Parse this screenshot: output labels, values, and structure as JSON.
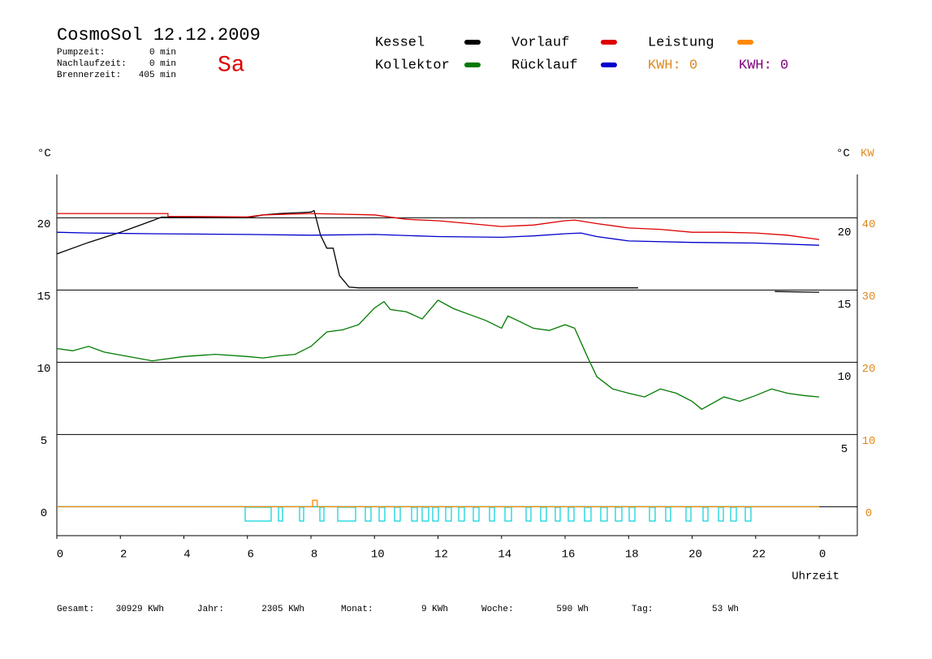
{
  "chart_data": {
    "type": "line",
    "title": "CosmoSol 12.12.2009",
    "day": "Sa",
    "stats": [
      {
        "label": "Pumpzeit:",
        "value": "0 min"
      },
      {
        "label": "Nachlaufzeit:",
        "value": "0 min"
      },
      {
        "label": "Brennerzeit:",
        "value": "405 min"
      }
    ],
    "energy_labels": [
      {
        "text": "KWH: 0",
        "color": "#e08a1e"
      },
      {
        "text": "KWH: 0",
        "color": "#800080"
      }
    ],
    "y_label": "°C",
    "y2_label": [
      {
        "text": "°C",
        "color": "#000000"
      },
      {
        "text": "KW",
        "color": "#e08a1e"
      }
    ],
    "x_label": "Uhrzeit",
    "xlim": [
      0,
      25.2
    ],
    "xticks": [
      0,
      2,
      4,
      6,
      8,
      10,
      12,
      14,
      16,
      18,
      20,
      22,
      {
        "value": 24,
        "label": "0"
      }
    ],
    "ylim": [
      -2,
      23
    ],
    "yticks": [
      0,
      5,
      10,
      15,
      20
    ],
    "yticks_inner": [
      5,
      10,
      15,
      20
    ],
    "y2lim": [
      -4,
      46
    ],
    "y2ticks": [
      0,
      10,
      20,
      30,
      40
    ],
    "y2tick_color": "#e08a1e",
    "grid": true,
    "series": [
      {
        "name": "Kessel",
        "color": "#000000",
        "x": [
          0,
          1,
          2,
          3,
          3.3,
          6,
          6.5,
          7,
          8,
          8.1,
          8.3,
          8.5,
          8.7,
          8.9,
          9.2,
          9.5,
          18.3,
          20,
          22.6,
          24
        ],
        "values": [
          17.5,
          18.3,
          19.0,
          19.8,
          20.05,
          20.0,
          20.2,
          20.3,
          20.4,
          20.5,
          18.8,
          17.9,
          17.9,
          16.0,
          15.2,
          15.15,
          15.15,
          null,
          14.9,
          14.85
        ]
      },
      {
        "name": "Kollektor",
        "color": "#007a00",
        "x": [
          0,
          0.5,
          1,
          1.5,
          2,
          3,
          4,
          5,
          6,
          6.5,
          7,
          7.5,
          8,
          8.5,
          9,
          9.5,
          10,
          10.3,
          10.5,
          11,
          11.5,
          12,
          12.5,
          13,
          13.5,
          14,
          14.2,
          14.5,
          15,
          15.5,
          16,
          16.3,
          16.7,
          17,
          17.5,
          18,
          18.5,
          19,
          19.5,
          20,
          20.3,
          21,
          21.5,
          22,
          22.5,
          23,
          23.5,
          24
        ],
        "values": [
          10.95,
          10.8,
          11.1,
          10.7,
          10.5,
          10.1,
          10.4,
          10.55,
          10.4,
          10.3,
          10.45,
          10.55,
          11.1,
          12.1,
          12.25,
          12.6,
          13.76,
          14.2,
          13.65,
          13.5,
          13.0,
          14.3,
          13.7,
          13.3,
          12.9,
          12.36,
          13.2,
          12.9,
          12.36,
          12.2,
          12.6,
          12.36,
          10.4,
          9.0,
          8.15,
          7.86,
          7.6,
          8.15,
          7.86,
          7.3,
          6.75,
          7.6,
          7.3,
          7.7,
          8.15,
          7.86,
          7.7,
          7.6
        ]
      },
      {
        "name": "Vorlauf",
        "color": "#dd0000",
        "x": [
          0,
          3.5,
          3.5,
          6,
          6.5,
          8,
          10,
          11,
          12,
          13,
          14,
          15,
          16,
          16.3,
          17,
          18,
          19,
          20,
          21,
          22,
          23,
          24
        ],
        "values": [
          20.3,
          20.3,
          20.1,
          20.06,
          20.2,
          20.3,
          20.2,
          19.9,
          19.8,
          19.6,
          19.4,
          19.5,
          19.8,
          19.85,
          19.6,
          19.3,
          19.2,
          19.0,
          19.0,
          18.95,
          18.8,
          18.5
        ]
      },
      {
        "name": "Rücklauf",
        "color": "#0000cc",
        "x": [
          0,
          1,
          3,
          6,
          8,
          10,
          12,
          14,
          15,
          16,
          16.5,
          17,
          18,
          20,
          22,
          24
        ],
        "values": [
          19.0,
          18.95,
          18.9,
          18.85,
          18.8,
          18.85,
          18.7,
          18.65,
          18.75,
          18.9,
          18.95,
          18.7,
          18.4,
          18.3,
          18.25,
          18.1
        ]
      },
      {
        "name": "Leistung",
        "color": "#ff8800",
        "axis": "y2",
        "x": [
          0,
          8.05,
          8.05,
          8.2,
          8.2,
          24
        ],
        "values": [
          0,
          0,
          0.9,
          0.9,
          0,
          0
        ]
      }
    ],
    "totals": [
      {
        "label": "Gesamt:",
        "value": "30929 KWh"
      },
      {
        "label": "Jahr:",
        "value": "2305 KWh"
      },
      {
        "label": "Monat:",
        "value": "9 KWh"
      },
      {
        "label": "Woche:",
        "value": "590 Wh"
      },
      {
        "label": "Tag:",
        "value": "53 Wh"
      }
    ]
  }
}
